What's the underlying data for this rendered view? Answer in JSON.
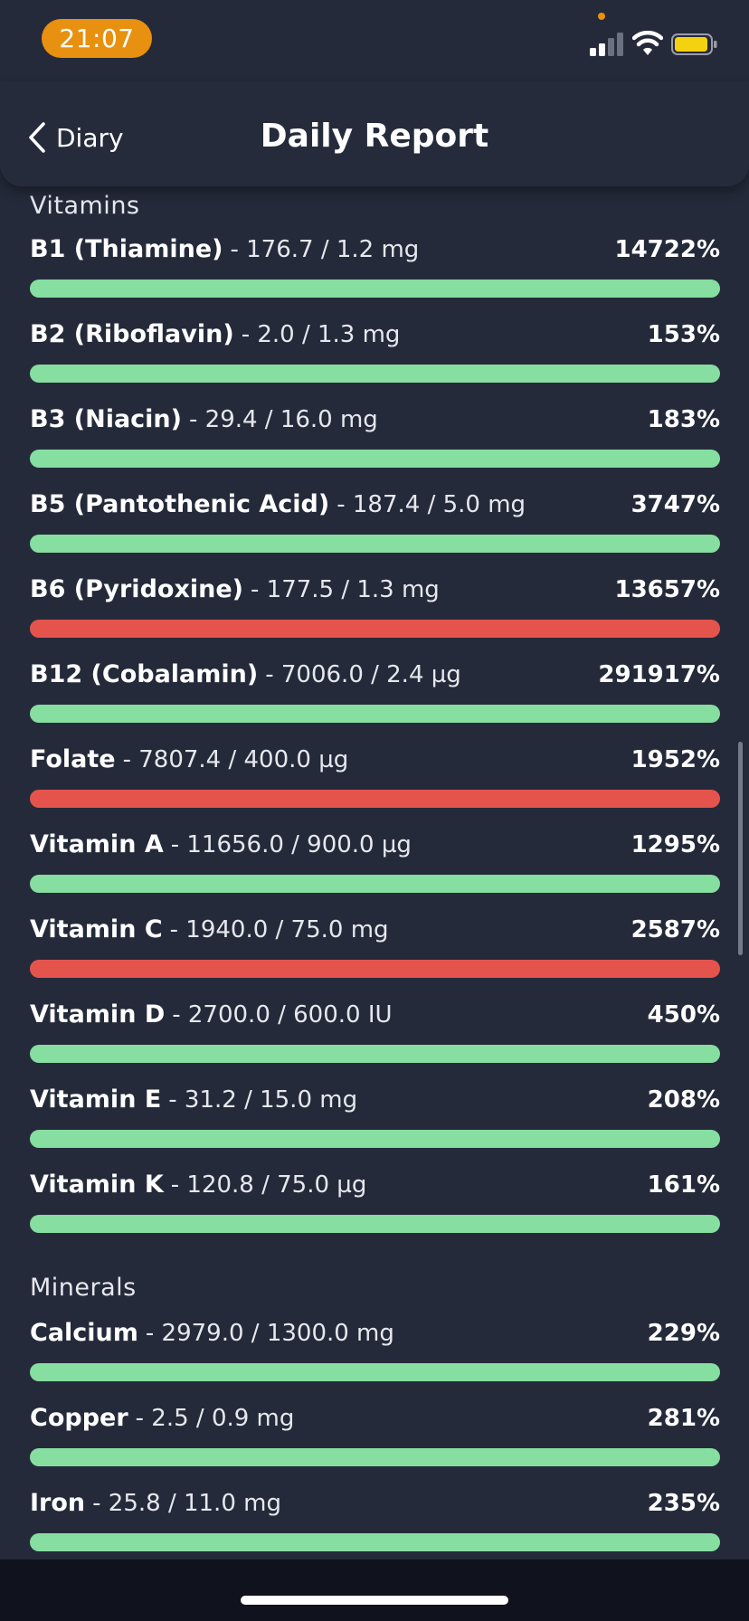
{
  "status_bar": {
    "time": "21:07",
    "icons": [
      "cellular-signal-icon",
      "wifi-icon",
      "battery-icon"
    ],
    "accent_color": "#e8900f",
    "battery_color": "#f5d20f"
  },
  "nav": {
    "back_label": "Diary",
    "title": "Daily Report"
  },
  "colors": {
    "background": "#252a3a",
    "bar_ok": "#86dea0",
    "bar_warning": "#e5544c"
  },
  "sections": [
    {
      "title": "Vitamins",
      "items": [
        {
          "name": "B1 (Thiamine)",
          "amount": "- 176.7 / 1.2 mg",
          "percent": "14722%",
          "status": "ok"
        },
        {
          "name": "B2 (Riboflavin)",
          "amount": "- 2.0 / 1.3 mg",
          "percent": "153%",
          "status": "ok"
        },
        {
          "name": "B3 (Niacin)",
          "amount": "- 29.4 / 16.0 mg",
          "percent": "183%",
          "status": "ok"
        },
        {
          "name": "B5 (Pantothenic Acid)",
          "amount": "- 187.4 / 5.0 mg",
          "percent": "3747%",
          "status": "ok"
        },
        {
          "name": "B6 (Pyridoxine)",
          "amount": "- 177.5 / 1.3 mg",
          "percent": "13657%",
          "status": "warning"
        },
        {
          "name": "B12 (Cobalamin)",
          "amount": "- 7006.0 / 2.4 µg",
          "percent": "291917%",
          "status": "ok"
        },
        {
          "name": "Folate",
          "amount": "- 7807.4 / 400.0 µg",
          "percent": "1952%",
          "status": "warning"
        },
        {
          "name": "Vitamin A",
          "amount": "- 11656.0 / 900.0 µg",
          "percent": "1295%",
          "status": "ok"
        },
        {
          "name": "Vitamin C",
          "amount": "- 1940.0 / 75.0 mg",
          "percent": "2587%",
          "status": "warning"
        },
        {
          "name": "Vitamin D",
          "amount": "- 2700.0 / 600.0 IU",
          "percent": "450%",
          "status": "ok"
        },
        {
          "name": "Vitamin E",
          "amount": "- 31.2 / 15.0 mg",
          "percent": "208%",
          "status": "ok"
        },
        {
          "name": "Vitamin K",
          "amount": "- 120.8 / 75.0 µg",
          "percent": "161%",
          "status": "ok"
        }
      ]
    },
    {
      "title": "Minerals",
      "items": [
        {
          "name": "Calcium",
          "amount": "- 2979.0 / 1300.0 mg",
          "percent": "229%",
          "status": "ok"
        },
        {
          "name": "Copper",
          "amount": "- 2.5 / 0.9 mg",
          "percent": "281%",
          "status": "ok"
        },
        {
          "name": "Iron",
          "amount": "- 25.8 / 11.0 mg",
          "percent": "235%",
          "status": "ok"
        }
      ]
    }
  ]
}
